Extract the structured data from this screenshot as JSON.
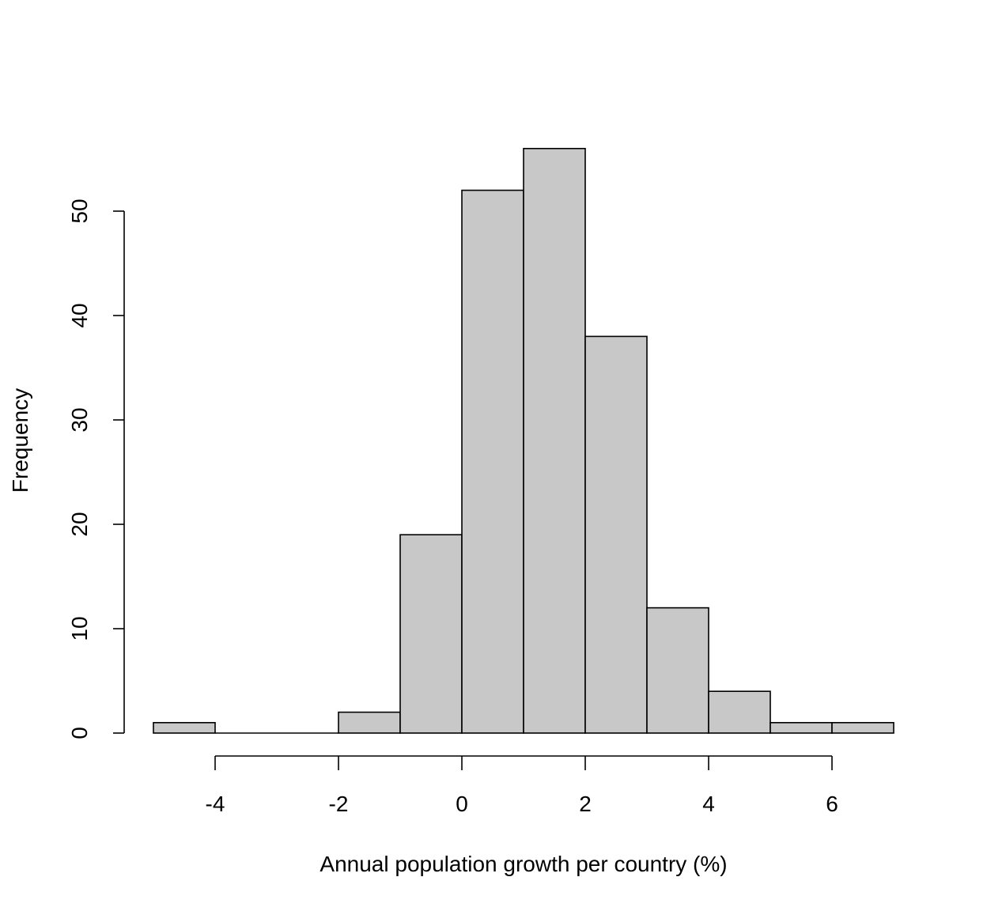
{
  "chart_data": {
    "type": "bar",
    "title": "",
    "xlabel": "Annual population growth per country (%)",
    "ylabel": "Frequency",
    "bins": [
      {
        "start": -5,
        "end": -4,
        "count": 1
      },
      {
        "start": -4,
        "end": -3,
        "count": 0
      },
      {
        "start": -3,
        "end": -2,
        "count": 0
      },
      {
        "start": -2,
        "end": -1,
        "count": 2
      },
      {
        "start": -1,
        "end": 0,
        "count": 19
      },
      {
        "start": 0,
        "end": 1,
        "count": 52
      },
      {
        "start": 1,
        "end": 2,
        "count": 56
      },
      {
        "start": 2,
        "end": 3,
        "count": 38
      },
      {
        "start": 3,
        "end": 4,
        "count": 12
      },
      {
        "start": 4,
        "end": 5,
        "count": 4
      },
      {
        "start": 5,
        "end": 6,
        "count": 1
      },
      {
        "start": 6,
        "end": 7,
        "count": 1
      }
    ],
    "x_ticks": [
      -4,
      -2,
      0,
      2,
      4,
      6
    ],
    "y_ticks": [
      0,
      10,
      20,
      30,
      40,
      50
    ],
    "xlim": [
      -5,
      7
    ],
    "ylim": [
      0,
      56
    ],
    "grid": false,
    "bar_fill": "#c8c8c8",
    "bar_stroke": "#000000"
  }
}
